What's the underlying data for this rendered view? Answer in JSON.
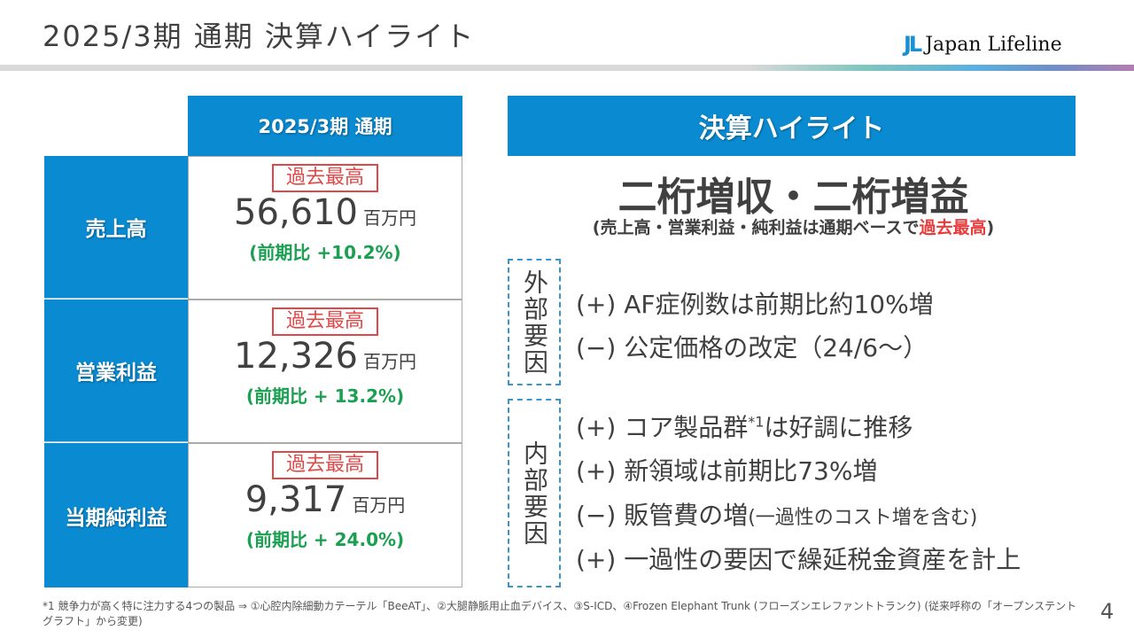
{
  "header": {
    "title": "2025/3期 通期 決算ハイライト",
    "logo_mark": "JL",
    "logo_text": "Japan Lifeline"
  },
  "table": {
    "column_header": "2025/3期 通期",
    "rows": [
      {
        "label": "売上高",
        "badge": "過去最高",
        "value": "56,610",
        "unit": "百万円",
        "yoy": "(前期比 +10.2%)"
      },
      {
        "label": "営業利益",
        "badge": "過去最高",
        "value": "12,326",
        "unit": "百万円",
        "yoy": "(前期比 + 13.2%)"
      },
      {
        "label": "当期純利益",
        "badge": "過去最高",
        "value": "9,317",
        "unit": "百万円",
        "yoy": "(前期比 + 24.0%)"
      }
    ]
  },
  "highlights": {
    "header": "決算ハイライト",
    "headline": "二桁増収・二桁増益",
    "sub_prefix": "(売上高・営業利益・純利益は通期ベースで",
    "sub_red": "過去最高",
    "sub_suffix": ")",
    "external": {
      "label": "外部要因",
      "items": [
        "(+) AF症例数は前期比約10%増",
        "(−) 公定価格の改定（24/6～）"
      ]
    },
    "internal": {
      "label": "内部要因",
      "item1_a": "(+) コア製品群",
      "item1_sup": "*1",
      "item1_b": "は好調に推移",
      "item2": "(+) 新領域は前期比73%増",
      "item3_a": "(−) 販管費の増",
      "item3_small": "(一過性のコスト増を含む)",
      "item4": "(+) 一過性の要因で繰延税金資産を計上"
    }
  },
  "footnote": "*1 競争力が高く特に注力する4つの製品 ⇒ ①心腔内除細動カテーテル「BeeAT」、②大腿静脈用止血デバイス、③S-ICD、④Frozen Elephant Trunk (フローズンエレファントトランク) (従来呼称の「オープンステントグラフト」から変更)",
  "page_number": "4",
  "colors": {
    "blue": "#0a8ad0",
    "red": "#e04848",
    "green": "#1aa050",
    "text": "#404040"
  }
}
